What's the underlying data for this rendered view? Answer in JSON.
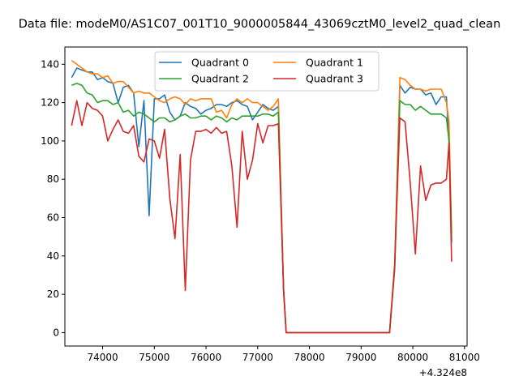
{
  "chart_data": {
    "type": "line",
    "title": "Data file: modeM0/AS1C07_001T10_9000005844_43069cztM0_level2_quad_clean",
    "xlabel": "",
    "ylabel": "",
    "offset_text": "+4.324e8",
    "xlim": [
      73270,
      81050
    ],
    "ylim": [
      -7,
      149
    ],
    "x_ticks": [
      74000,
      75000,
      76000,
      77000,
      78000,
      79000,
      80000,
      81000
    ],
    "y_ticks": [
      0,
      20,
      40,
      60,
      80,
      100,
      120,
      140
    ],
    "legend_placement": "upper-center",
    "legend_columns": 2,
    "grid": false,
    "x": [
      73400,
      73500,
      73600,
      73700,
      73800,
      73900,
      74000,
      74100,
      74200,
      74300,
      74400,
      74500,
      74600,
      74700,
      74800,
      74900,
      75000,
      75100,
      75200,
      75300,
      75400,
      75500,
      75600,
      75700,
      75800,
      75900,
      76000,
      76100,
      76200,
      76300,
      76400,
      76500,
      76600,
      76700,
      76800,
      76900,
      77000,
      77100,
      77200,
      77300,
      77400,
      77500,
      77550,
      77650,
      77800,
      78000,
      78200,
      78400,
      78600,
      78800,
      79000,
      79200,
      79400,
      79550,
      79650,
      79750,
      79850,
      79950,
      80050,
      80150,
      80250,
      80350,
      80450,
      80550,
      80650,
      80700,
      80750
    ],
    "series": [
      {
        "name": "Quadrant 0",
        "color": "#1f77b4",
        "values": [
          133,
          138,
          137,
          136,
          136,
          132,
          133,
          131,
          130,
          120,
          128,
          129,
          125,
          97,
          121,
          61,
          122,
          122,
          124,
          115,
          111,
          113,
          120,
          118,
          117,
          114,
          116,
          117,
          119,
          119,
          118,
          120,
          121,
          119,
          118,
          111,
          115,
          119,
          117,
          116,
          118,
          23,
          0,
          0,
          0,
          0,
          0,
          0,
          0,
          0,
          0,
          0,
          0,
          0,
          33,
          129,
          125,
          128,
          127,
          127,
          124,
          125,
          119,
          123,
          123,
          100,
          47
        ]
      },
      {
        "name": "Quadrant 1",
        "color": "#ff7f0e",
        "values": [
          142,
          140,
          138,
          136,
          135,
          135,
          133,
          134,
          130,
          131,
          131,
          128,
          125,
          126,
          125,
          125,
          123,
          121,
          120,
          122,
          123,
          122,
          119,
          122,
          121,
          122,
          122,
          122,
          115,
          116,
          112,
          119,
          122,
          120,
          122,
          120,
          120,
          118,
          116,
          118,
          122,
          22,
          0,
          0,
          0,
          0,
          0,
          0,
          0,
          0,
          0,
          0,
          0,
          0,
          36,
          133,
          132,
          129,
          127,
          127,
          126,
          127,
          127,
          127,
          120,
          110,
          52
        ]
      },
      {
        "name": "Quadrant 2",
        "color": "#2ca02c",
        "values": [
          129,
          130,
          129,
          125,
          124,
          120,
          121,
          121,
          119,
          120,
          115,
          116,
          113,
          115,
          114,
          112,
          110,
          112,
          112,
          110,
          111,
          113,
          114,
          112,
          112,
          113,
          113,
          111,
          113,
          112,
          110,
          112,
          111,
          113,
          113,
          113,
          113,
          114,
          114,
          113,
          115,
          22,
          0,
          0,
          0,
          0,
          0,
          0,
          0,
          0,
          0,
          0,
          0,
          0,
          34,
          121,
          119,
          119,
          116,
          118,
          116,
          114,
          114,
          114,
          112,
          100,
          49
        ]
      },
      {
        "name": "Quadrant 3",
        "color": "#d62728",
        "values": [
          108,
          121,
          108,
          120,
          117,
          116,
          113,
          100,
          106,
          111,
          105,
          104,
          108,
          92,
          89,
          101,
          100,
          91,
          106,
          70,
          49,
          93,
          22,
          90,
          105,
          105,
          106,
          104,
          107,
          104,
          105,
          87,
          55,
          105,
          80,
          90,
          109,
          99,
          108,
          108,
          109,
          22,
          0,
          0,
          0,
          0,
          0,
          0,
          0,
          0,
          0,
          0,
          0,
          0,
          35,
          112,
          110,
          78,
          41,
          87,
          69,
          77,
          78,
          78,
          80,
          99,
          37
        ]
      }
    ]
  }
}
